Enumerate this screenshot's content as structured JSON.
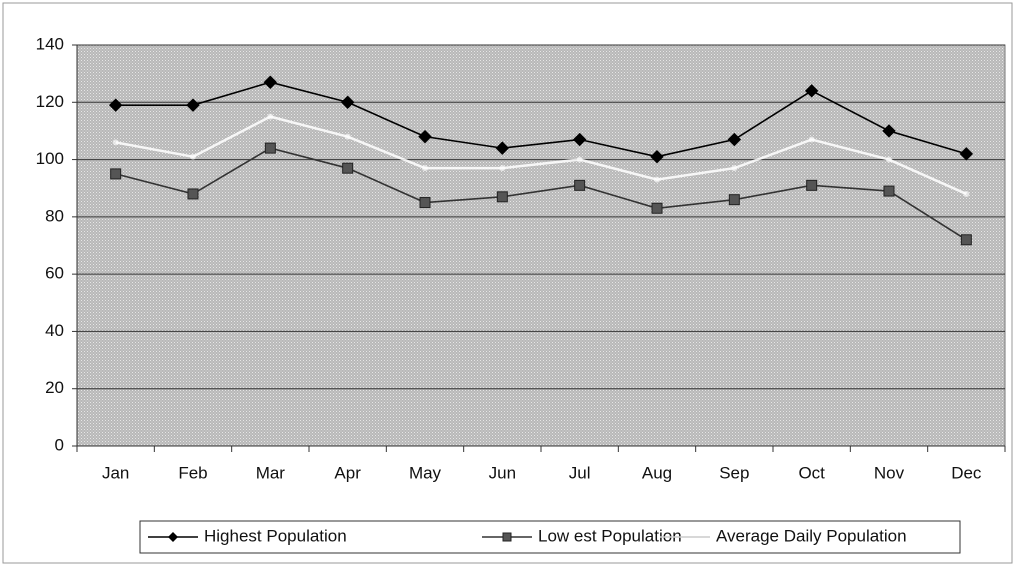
{
  "chart_data": {
    "type": "line",
    "categories": [
      "Jan",
      "Feb",
      "Mar",
      "Apr",
      "May",
      "Jun",
      "Jul",
      "Aug",
      "Sep",
      "Oct",
      "Nov",
      "Dec"
    ],
    "series": [
      {
        "name": "Highest Population",
        "color": "#000000",
        "marker": "diamond",
        "values": [
          119,
          119,
          127,
          120,
          108,
          104,
          107,
          101,
          107,
          124,
          110,
          102
        ]
      },
      {
        "name": "Low est Population",
        "color": "#333333",
        "marker": "square",
        "values": [
          95,
          88,
          104,
          97,
          85,
          87,
          91,
          83,
          86,
          91,
          89,
          72
        ]
      },
      {
        "name": "Average Daily Population",
        "color": "#ffffff",
        "marker": "none",
        "values": [
          106,
          101,
          115,
          108,
          97,
          97,
          100,
          93,
          97,
          107,
          100,
          88
        ]
      }
    ],
    "ylim": [
      0,
      140
    ],
    "yticks": [
      0,
      20,
      40,
      60,
      80,
      100,
      120,
      140
    ],
    "grid": true,
    "legend": "bottom"
  }
}
